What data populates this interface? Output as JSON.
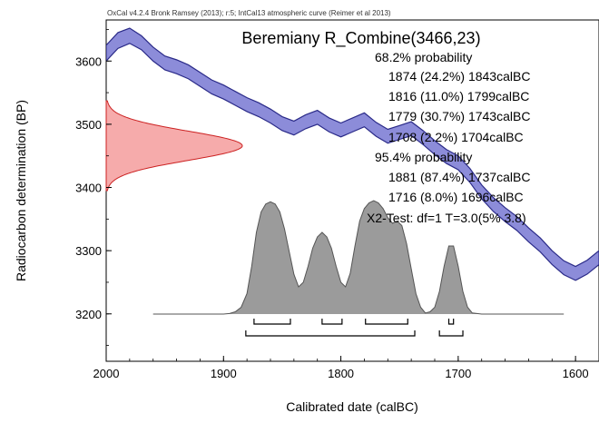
{
  "header": "OxCal v4.2.4 Bronk Ramsey (2013); r:5; IntCal13 atmospheric curve (Reimer et al 2013)",
  "chart_data": {
    "type": "area",
    "title": "Beremiany R_Combine(3466,23)",
    "xlabel": "Calibrated date (calBC)",
    "ylabel": "Radiocarbon determination (BP)",
    "xlim": [
      2000,
      1580
    ],
    "ylim": [
      3125,
      3665
    ],
    "x_axis_reversed": true,
    "x_ticks": [
      "2000",
      "1900",
      "1800",
      "1700",
      "1600"
    ],
    "y_ticks": [
      "3600",
      "3500",
      "3400",
      "3300",
      "3200"
    ],
    "annotation_lines": [
      "68.2% probability",
      "1874 (24.2%) 1843calBC",
      "1816 (11.0%) 1799calBC",
      "1779 (30.7%) 1743calBC",
      "1708 (2.2%) 1704calBC",
      "95.4% probability",
      "1881 (87.4%) 1737calBC",
      "1716 (8.0%) 1696calBC",
      "X2-Test: df=1 T=3.0(5% 3.8)"
    ],
    "calibration_curve": {
      "color": "#6666cc",
      "x": [
        2000,
        1990,
        1980,
        1970,
        1960,
        1950,
        1940,
        1930,
        1920,
        1910,
        1900,
        1890,
        1880,
        1870,
        1860,
        1850,
        1840,
        1830,
        1820,
        1810,
        1800,
        1790,
        1780,
        1770,
        1760,
        1750,
        1740,
        1730,
        1720,
        1710,
        1700,
        1690,
        1680,
        1670,
        1660,
        1650,
        1640,
        1630,
        1620,
        1610,
        1600,
        1590,
        1580
      ],
      "upper": [
        3625,
        3645,
        3652,
        3640,
        3622,
        3608,
        3602,
        3594,
        3582,
        3570,
        3562,
        3552,
        3542,
        3534,
        3524,
        3512,
        3505,
        3515,
        3522,
        3510,
        3502,
        3510,
        3518,
        3503,
        3492,
        3498,
        3504,
        3490,
        3474,
        3460,
        3450,
        3430,
        3404,
        3384,
        3368,
        3354,
        3336,
        3320,
        3300,
        3284,
        3275,
        3285,
        3300
      ],
      "lower": [
        3600,
        3620,
        3628,
        3618,
        3600,
        3586,
        3580,
        3572,
        3560,
        3548,
        3540,
        3530,
        3520,
        3512,
        3502,
        3490,
        3483,
        3493,
        3500,
        3488,
        3480,
        3488,
        3496,
        3481,
        3470,
        3476,
        3482,
        3468,
        3452,
        3438,
        3428,
        3408,
        3382,
        3362,
        3346,
        3332,
        3314,
        3298,
        3278,
        3262,
        3253,
        3263,
        3278
      ]
    },
    "measurement_distribution": {
      "color": "#ee6666",
      "mean_bp": 3466,
      "sd_bp": 23,
      "range_bp": [
        3395,
        3537
      ]
    },
    "posterior_distribution": {
      "color": "#777777",
      "x": [
        1960,
        1900,
        1895,
        1890,
        1885,
        1880,
        1876,
        1872,
        1868,
        1864,
        1860,
        1856,
        1852,
        1848,
        1844,
        1840,
        1836,
        1832,
        1828,
        1824,
        1820,
        1816,
        1812,
        1808,
        1804,
        1800,
        1796,
        1792,
        1788,
        1784,
        1780,
        1776,
        1772,
        1768,
        1764,
        1760,
        1756,
        1752,
        1748,
        1744,
        1740,
        1736,
        1732,
        1728,
        1724,
        1720,
        1716,
        1712,
        1708,
        1704,
        1700,
        1696,
        1692,
        1688,
        1680,
        1610
      ],
      "y": [
        0,
        0,
        0.005,
        0.02,
        0.06,
        0.18,
        0.42,
        0.72,
        0.9,
        0.97,
        0.99,
        0.97,
        0.9,
        0.75,
        0.55,
        0.35,
        0.24,
        0.28,
        0.42,
        0.58,
        0.68,
        0.72,
        0.68,
        0.58,
        0.42,
        0.28,
        0.24,
        0.36,
        0.6,
        0.82,
        0.93,
        0.98,
        1.0,
        0.98,
        0.93,
        0.85,
        0.8,
        0.82,
        0.78,
        0.62,
        0.4,
        0.18,
        0.06,
        0.01,
        0.02,
        0.06,
        0.2,
        0.42,
        0.6,
        0.6,
        0.42,
        0.2,
        0.06,
        0.01,
        0,
        0
      ]
    },
    "range_brackets": {
      "prob_68": [
        [
          1874,
          1843
        ],
        [
          1816,
          1799
        ],
        [
          1779,
          1743
        ],
        [
          1708,
          1704
        ]
      ],
      "prob_95": [
        [
          1881,
          1737
        ],
        [
          1716,
          1696
        ]
      ]
    }
  }
}
